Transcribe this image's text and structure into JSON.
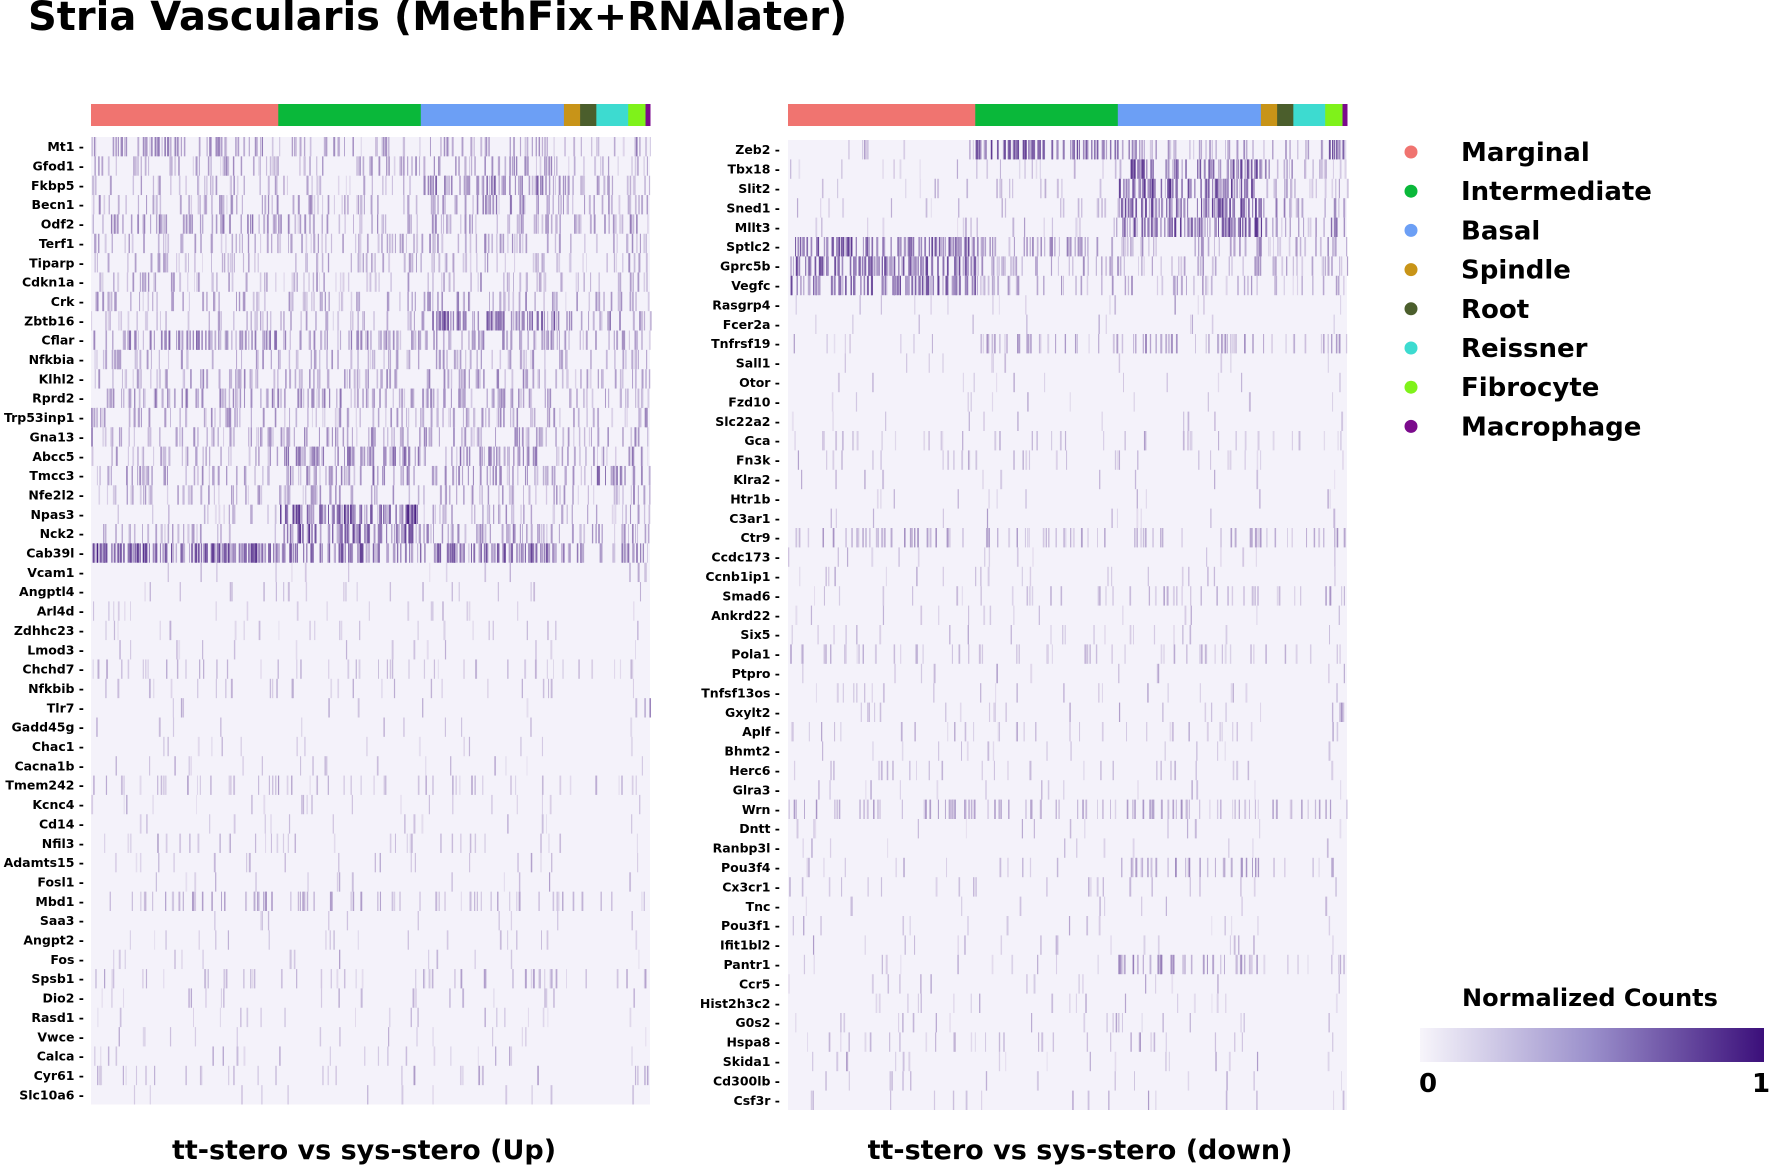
{
  "title": "Stria Vascularis (MethFix+RNAlater)",
  "chart_data": [
    {
      "type": "heatmap",
      "xlabel": "tt-stero vs sys-stero (Up)",
      "genes": [
        "Mt1",
        "Gfod1",
        "Fkbp5",
        "Becn1",
        "Odf2",
        "Terf1",
        "Tiparp",
        "Cdkn1a",
        "Crk",
        "Zbtb16",
        "Cflar",
        "Nfkbia",
        "Klhl2",
        "Rprd2",
        "Trp53inp1",
        "Gna13",
        "Abcc5",
        "Tmcc3",
        "Nfe2l2",
        "Npas3",
        "Nck2",
        "Cab39l",
        "Vcam1",
        "Angptl4",
        "Arl4d",
        "Zdhhc23",
        "Lmod3",
        "Chchd7",
        "Nfkbib",
        "Tlr7",
        "Gadd45g",
        "Chac1",
        "Cacna1b",
        "Tmem242",
        "Kcnc4",
        "Cd14",
        "Nfil3",
        "Adamts15",
        "Fosl1",
        "Mbd1",
        "Saa3",
        "Angpt2",
        "Fos",
        "Spsb1",
        "Dio2",
        "Rasd1",
        "Vwce",
        "Calca",
        "Cyr61",
        "Slc10a6"
      ],
      "clusters": [
        {
          "name": "Marginal",
          "fraction": 0.335
        },
        {
          "name": "Intermediate",
          "fraction": 0.255
        },
        {
          "name": "Basal",
          "fraction": 0.256
        },
        {
          "name": "Spindle",
          "fraction": 0.029
        },
        {
          "name": "Root",
          "fraction": 0.029
        },
        {
          "name": "Reissner",
          "fraction": 0.057
        },
        {
          "name": "Fibrocyte",
          "fraction": 0.031
        },
        {
          "name": "Macrophage",
          "fraction": 0.008
        }
      ],
      "density": [
        [
          0.45,
          0.35,
          0.35,
          0.2,
          0.2,
          0.2,
          0.5,
          0.3
        ],
        [
          0.35,
          0.3,
          0.4,
          0.2,
          0.2,
          0.2,
          0.4,
          0.3
        ],
        [
          0.25,
          0.2,
          0.7,
          0.4,
          0.4,
          0.4,
          0.35,
          0.3
        ],
        [
          0.35,
          0.35,
          0.45,
          0.3,
          0.3,
          0.3,
          0.4,
          0.3
        ],
        [
          0.45,
          0.4,
          0.4,
          0.3,
          0.3,
          0.3,
          0.45,
          0.3
        ],
        [
          0.3,
          0.35,
          0.35,
          0.2,
          0.2,
          0.2,
          0.35,
          0.3
        ],
        [
          0.25,
          0.3,
          0.3,
          0.2,
          0.2,
          0.2,
          0.35,
          0.3
        ],
        [
          0.3,
          0.25,
          0.3,
          0.2,
          0.2,
          0.2,
          0.35,
          0.3
        ],
        [
          0.3,
          0.3,
          0.4,
          0.3,
          0.3,
          0.3,
          0.4,
          0.3
        ],
        [
          0.25,
          0.25,
          0.75,
          0.4,
          0.4,
          0.4,
          0.5,
          0.3
        ],
        [
          0.6,
          0.5,
          0.45,
          0.3,
          0.3,
          0.3,
          0.45,
          0.3
        ],
        [
          0.3,
          0.3,
          0.35,
          0.2,
          0.2,
          0.2,
          0.35,
          0.3
        ],
        [
          0.35,
          0.35,
          0.4,
          0.3,
          0.3,
          0.3,
          0.4,
          0.3
        ],
        [
          0.5,
          0.45,
          0.45,
          0.3,
          0.3,
          0.3,
          0.45,
          0.3
        ],
        [
          0.35,
          0.3,
          0.4,
          0.2,
          0.2,
          0.2,
          0.45,
          0.3
        ],
        [
          0.35,
          0.45,
          0.4,
          0.3,
          0.3,
          0.3,
          0.4,
          0.3
        ],
        [
          0.3,
          0.6,
          0.5,
          0.3,
          0.3,
          0.3,
          0.5,
          0.3
        ],
        [
          0.35,
          0.5,
          0.45,
          0.3,
          0.3,
          0.7,
          0.45,
          0.3
        ],
        [
          0.3,
          0.35,
          0.35,
          0.2,
          0.2,
          0.2,
          0.35,
          0.3
        ],
        [
          0.1,
          0.95,
          0.35,
          0.2,
          0.2,
          0.2,
          0.3,
          0.2
        ],
        [
          0.25,
          0.85,
          0.5,
          0.3,
          0.3,
          0.3,
          0.4,
          0.3
        ],
        [
          0.95,
          0.8,
          0.8,
          0.5,
          0.5,
          0.5,
          0.6,
          0.4
        ],
        [
          0.02,
          0.02,
          0.03,
          0.0,
          0.0,
          0.0,
          0.3,
          0.2
        ],
        [
          0.04,
          0.06,
          0.05,
          0.0,
          0.0,
          0.0,
          0.1,
          0.1
        ],
        [
          0.05,
          0.04,
          0.04,
          0.0,
          0.0,
          0.0,
          0.1,
          0.1
        ],
        [
          0.06,
          0.06,
          0.07,
          0.0,
          0.0,
          0.0,
          0.1,
          0.1
        ],
        [
          0.03,
          0.03,
          0.03,
          0.0,
          0.0,
          0.0,
          0.05,
          0.05
        ],
        [
          0.12,
          0.1,
          0.12,
          0.1,
          0.1,
          0.1,
          0.2,
          0.1
        ],
        [
          0.08,
          0.06,
          0.06,
          0.0,
          0.0,
          0.0,
          0.1,
          0.1
        ],
        [
          0.01,
          0.01,
          0.01,
          0.0,
          0.0,
          0.0,
          0.2,
          0.5
        ],
        [
          0.02,
          0.02,
          0.02,
          0.0,
          0.0,
          0.0,
          0.05,
          0.05
        ],
        [
          0.03,
          0.03,
          0.03,
          0.0,
          0.0,
          0.0,
          0.05,
          0.05
        ],
        [
          0.05,
          0.04,
          0.05,
          0.0,
          0.0,
          0.0,
          0.1,
          0.1
        ],
        [
          0.15,
          0.12,
          0.12,
          0.1,
          0.1,
          0.1,
          0.15,
          0.1
        ],
        [
          0.05,
          0.05,
          0.05,
          0.0,
          0.0,
          0.0,
          0.1,
          0.1
        ],
        [
          0.03,
          0.03,
          0.03,
          0.0,
          0.0,
          0.0,
          0.05,
          0.05
        ],
        [
          0.1,
          0.08,
          0.08,
          0.0,
          0.0,
          0.0,
          0.1,
          0.1
        ],
        [
          0.05,
          0.05,
          0.05,
          0.0,
          0.0,
          0.0,
          0.1,
          0.1
        ],
        [
          0.03,
          0.03,
          0.03,
          0.0,
          0.0,
          0.0,
          0.05,
          0.05
        ],
        [
          0.25,
          0.22,
          0.22,
          0.1,
          0.1,
          0.1,
          0.2,
          0.1
        ],
        [
          0.02,
          0.02,
          0.02,
          0.0,
          0.0,
          0.0,
          0.05,
          0.05
        ],
        [
          0.04,
          0.04,
          0.04,
          0.0,
          0.0,
          0.0,
          0.05,
          0.05
        ],
        [
          0.03,
          0.03,
          0.03,
          0.0,
          0.0,
          0.0,
          0.05,
          0.05
        ],
        [
          0.1,
          0.08,
          0.2,
          0.1,
          0.1,
          0.1,
          0.15,
          0.1
        ],
        [
          0.05,
          0.05,
          0.05,
          0.0,
          0.0,
          0.0,
          0.1,
          0.1
        ],
        [
          0.04,
          0.04,
          0.04,
          0.0,
          0.0,
          0.0,
          0.05,
          0.05
        ],
        [
          0.03,
          0.03,
          0.03,
          0.0,
          0.0,
          0.0,
          0.05,
          0.05
        ],
        [
          0.06,
          0.05,
          0.05,
          0.0,
          0.0,
          0.0,
          0.1,
          0.1
        ],
        [
          0.1,
          0.05,
          0.06,
          0.0,
          0.0,
          0.0,
          0.3,
          0.3
        ],
        [
          0.02,
          0.02,
          0.03,
          0.0,
          0.0,
          0.0,
          0.05,
          0.05
        ]
      ]
    },
    {
      "type": "heatmap",
      "xlabel": "tt-stero vs sys-stero (down)",
      "genes": [
        "Zeb2",
        "Tbx18",
        "Slit2",
        "Sned1",
        "Mllt3",
        "Sptlc2",
        "Gprc5b",
        "Vegfc",
        "Rasgrp4",
        "Fcer2a",
        "Tnfrsf19",
        "Sall1",
        "Otor",
        "Fzd10",
        "Slc22a2",
        "Gca",
        "Fn3k",
        "Klra2",
        "Htr1b",
        "C3ar1",
        "Ctr9",
        "Ccdc173",
        "Ccnb1ip1",
        "Smad6",
        "Ankrd22",
        "Six5",
        "Pola1",
        "Ptpro",
        "Tnfsf13os",
        "Gxylt2",
        "Aplf",
        "Bhmt2",
        "Herc6",
        "Glra3",
        "Wrn",
        "Dntt",
        "Ranbp3l",
        "Pou3f4",
        "Cx3cr1",
        "Tnc",
        "Pou3f1",
        "Ifit1bl2",
        "Pantr1",
        "Ccr5",
        "Hist2h3c2",
        "G0s2",
        "Hspa8",
        "Skida1",
        "Cd300lb",
        "Csf3r"
      ],
      "clusters": [
        {
          "name": "Marginal",
          "fraction": 0.335
        },
        {
          "name": "Intermediate",
          "fraction": 0.255
        },
        {
          "name": "Basal",
          "fraction": 0.256
        },
        {
          "name": "Spindle",
          "fraction": 0.029
        },
        {
          "name": "Root",
          "fraction": 0.029
        },
        {
          "name": "Reissner",
          "fraction": 0.057
        },
        {
          "name": "Fibrocyte",
          "fraction": 0.031
        },
        {
          "name": "Macrophage",
          "fraction": 0.008
        }
      ],
      "density": [
        [
          0.05,
          0.85,
          0.4,
          0.3,
          0.3,
          0.3,
          0.9,
          0.6
        ],
        [
          0.05,
          0.1,
          0.85,
          0.4,
          0.4,
          0.3,
          0.3,
          0.2
        ],
        [
          0.05,
          0.1,
          0.9,
          0.4,
          0.4,
          0.3,
          0.3,
          0.2
        ],
        [
          0.05,
          0.1,
          0.85,
          0.4,
          0.4,
          0.3,
          0.3,
          0.2
        ],
        [
          0.05,
          0.1,
          0.95,
          0.4,
          0.4,
          0.3,
          0.6,
          0.3
        ],
        [
          0.85,
          0.4,
          0.35,
          0.3,
          0.3,
          0.3,
          0.4,
          0.3
        ],
        [
          0.8,
          0.35,
          0.3,
          0.3,
          0.3,
          0.3,
          0.4,
          0.3
        ],
        [
          0.75,
          0.3,
          0.25,
          0.2,
          0.2,
          0.2,
          0.3,
          0.2
        ],
        [
          0.03,
          0.04,
          0.03,
          0.0,
          0.0,
          0.0,
          0.1,
          0.1
        ],
        [
          0.02,
          0.02,
          0.02,
          0.0,
          0.0,
          0.0,
          0.05,
          0.05
        ],
        [
          0.05,
          0.3,
          0.35,
          0.2,
          0.2,
          0.2,
          0.4,
          0.2
        ],
        [
          0.02,
          0.02,
          0.02,
          0.0,
          0.0,
          0.0,
          0.05,
          0.05
        ],
        [
          0.02,
          0.02,
          0.03,
          0.0,
          0.0,
          0.0,
          0.05,
          0.05
        ],
        [
          0.02,
          0.02,
          0.02,
          0.0,
          0.0,
          0.0,
          0.05,
          0.05
        ],
        [
          0.02,
          0.02,
          0.02,
          0.0,
          0.0,
          0.0,
          0.05,
          0.05
        ],
        [
          0.12,
          0.1,
          0.1,
          0.1,
          0.1,
          0.1,
          0.15,
          0.1
        ],
        [
          0.08,
          0.08,
          0.08,
          0.0,
          0.0,
          0.0,
          0.1,
          0.1
        ],
        [
          0.02,
          0.02,
          0.02,
          0.0,
          0.0,
          0.0,
          0.05,
          0.05
        ],
        [
          0.02,
          0.02,
          0.02,
          0.0,
          0.0,
          0.0,
          0.2,
          0.1
        ],
        [
          0.02,
          0.02,
          0.02,
          0.0,
          0.0,
          0.0,
          0.05,
          0.05
        ],
        [
          0.3,
          0.25,
          0.25,
          0.2,
          0.2,
          0.2,
          0.3,
          0.2
        ],
        [
          0.03,
          0.03,
          0.03,
          0.0,
          0.0,
          0.0,
          0.05,
          0.05
        ],
        [
          0.05,
          0.05,
          0.05,
          0.0,
          0.0,
          0.0,
          0.1,
          0.1
        ],
        [
          0.05,
          0.1,
          0.2,
          0.1,
          0.1,
          0.1,
          0.3,
          0.2
        ],
        [
          0.03,
          0.03,
          0.03,
          0.0,
          0.0,
          0.0,
          0.05,
          0.05
        ],
        [
          0.05,
          0.05,
          0.06,
          0.0,
          0.0,
          0.0,
          0.1,
          0.1
        ],
        [
          0.15,
          0.12,
          0.15,
          0.1,
          0.1,
          0.1,
          0.2,
          0.1
        ],
        [
          0.02,
          0.02,
          0.02,
          0.0,
          0.0,
          0.0,
          0.05,
          0.2
        ],
        [
          0.06,
          0.05,
          0.05,
          0.0,
          0.0,
          0.0,
          0.1,
          0.1
        ],
        [
          0.04,
          0.04,
          0.04,
          0.0,
          0.0,
          0.0,
          0.4,
          0.2
        ],
        [
          0.08,
          0.08,
          0.1,
          0.0,
          0.0,
          0.0,
          0.15,
          0.1
        ],
        [
          0.03,
          0.03,
          0.03,
          0.0,
          0.0,
          0.0,
          0.05,
          0.05
        ],
        [
          0.08,
          0.06,
          0.08,
          0.0,
          0.0,
          0.0,
          0.1,
          0.1
        ],
        [
          0.03,
          0.03,
          0.03,
          0.0,
          0.0,
          0.0,
          0.05,
          0.05
        ],
        [
          0.3,
          0.25,
          0.3,
          0.2,
          0.2,
          0.2,
          0.3,
          0.2
        ],
        [
          0.03,
          0.03,
          0.03,
          0.0,
          0.0,
          0.0,
          0.05,
          0.05
        ],
        [
          0.02,
          0.02,
          0.02,
          0.0,
          0.0,
          0.0,
          0.05,
          0.05
        ],
        [
          0.04,
          0.04,
          0.35,
          0.1,
          0.1,
          0.1,
          0.2,
          0.1
        ],
        [
          0.06,
          0.05,
          0.05,
          0.0,
          0.0,
          0.0,
          0.1,
          0.1
        ],
        [
          0.02,
          0.02,
          0.02,
          0.0,
          0.0,
          0.0,
          0.05,
          0.05
        ],
        [
          0.03,
          0.03,
          0.03,
          0.0,
          0.0,
          0.0,
          0.05,
          0.05
        ],
        [
          0.03,
          0.04,
          0.04,
          0.0,
          0.0,
          0.0,
          0.05,
          0.05
        ],
        [
          0.03,
          0.04,
          0.4,
          0.1,
          0.1,
          0.1,
          0.3,
          0.2
        ],
        [
          0.03,
          0.03,
          0.03,
          0.0,
          0.0,
          0.0,
          0.05,
          0.05
        ],
        [
          0.04,
          0.04,
          0.04,
          0.0,
          0.0,
          0.0,
          0.05,
          0.05
        ],
        [
          0.05,
          0.05,
          0.05,
          0.0,
          0.0,
          0.0,
          0.1,
          0.1
        ],
        [
          0.1,
          0.08,
          0.08,
          0.0,
          0.0,
          0.0,
          0.1,
          0.1
        ],
        [
          0.04,
          0.04,
          0.04,
          0.0,
          0.0,
          0.0,
          0.05,
          0.05
        ],
        [
          0.03,
          0.03,
          0.03,
          0.0,
          0.0,
          0.0,
          0.05,
          0.1
        ],
        [
          0.03,
          0.03,
          0.03,
          0.0,
          0.0,
          0.0,
          0.05,
          0.3
        ]
      ]
    }
  ],
  "legend": {
    "items": [
      {
        "name": "Marginal",
        "color": "#f07470"
      },
      {
        "name": "Intermediate",
        "color": "#0ab83a"
      },
      {
        "name": "Basal",
        "color": "#6c9ff5"
      },
      {
        "name": "Spindle",
        "color": "#c89418"
      },
      {
        "name": "Root",
        "color": "#4b5e2c"
      },
      {
        "name": "Reissner",
        "color": "#3ddbd0"
      },
      {
        "name": "Fibrocyte",
        "color": "#7ff21a"
      },
      {
        "name": "Macrophage",
        "color": "#7b0a8c"
      }
    ]
  },
  "colorbar": {
    "title": "Normalized Counts",
    "min_label": "0",
    "max_label": "1",
    "color_low": "#f7f5fb",
    "color_high": "#3b0f7a"
  }
}
